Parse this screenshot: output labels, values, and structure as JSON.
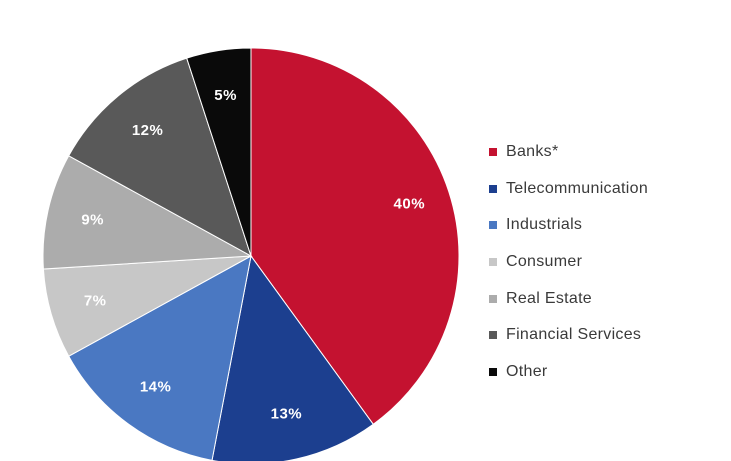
{
  "chart_data": {
    "type": "pie",
    "title": "",
    "legend_position": "right",
    "slices": [
      {
        "label": "Banks*",
        "value": 40,
        "value_label": "40%",
        "color": "#c41230"
      },
      {
        "label": "Telecommunication",
        "value": 13,
        "value_label": "13%",
        "color": "#1c3f8f"
      },
      {
        "label": "Industrials",
        "value": 14,
        "value_label": "14%",
        "color": "#4a78c2"
      },
      {
        "label": "Consumer",
        "value": 7,
        "value_label": "7%",
        "color": "#c7c7c7"
      },
      {
        "label": "Real Estate",
        "value": 9,
        "value_label": "9%",
        "color": "#acacac"
      },
      {
        "label": "Financial Services",
        "value": 12,
        "value_label": "12%",
        "color": "#595959"
      },
      {
        "label": "Other",
        "value": 5,
        "value_label": "5%",
        "color": "#0a0a0a"
      }
    ]
  }
}
